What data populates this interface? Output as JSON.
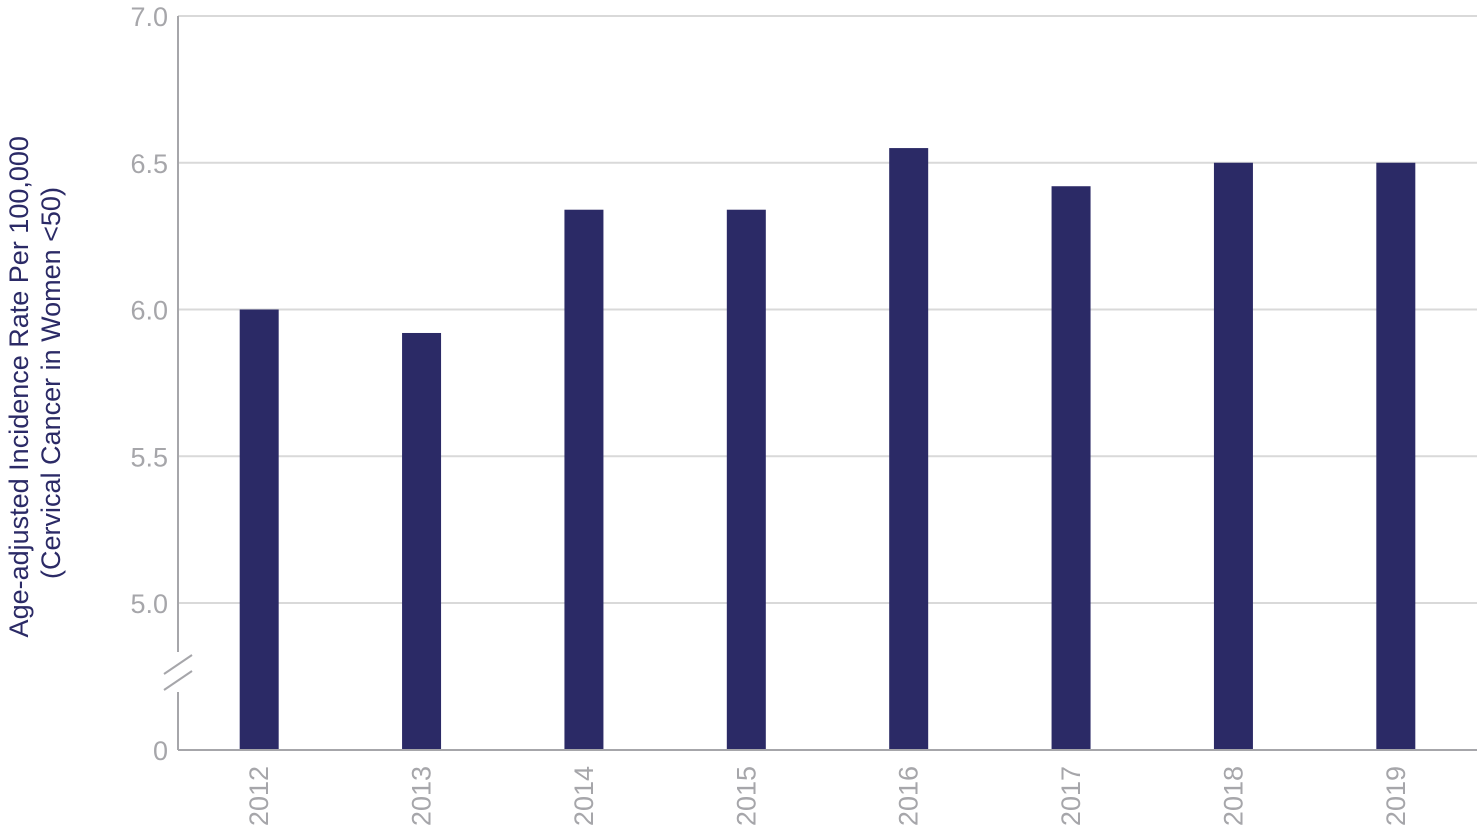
{
  "chart_data": {
    "type": "bar",
    "title": "",
    "ylabel": "Age-adjusted Incidence Rate Per 100,000 (Cervical Cancer in Women <50)",
    "ylabel_lines": [
      "Age-adjusted Incidence Rate Per 100,000",
      "(Cervical Cancer in Women <50)"
    ],
    "xlabel": "",
    "categories": [
      "2012",
      "2013",
      "2014",
      "2015",
      "2016",
      "2017",
      "2018",
      "2019"
    ],
    "values": [
      6.0,
      5.92,
      6.34,
      6.34,
      6.55,
      6.42,
      6.5,
      6.5
    ],
    "ylim": [
      0,
      7.0
    ],
    "axis_break": true,
    "y_ticks": [
      0,
      5.0,
      5.5,
      6.0,
      6.5,
      7.0
    ],
    "y_tick_labels": [
      "0",
      "5.0",
      "5.5",
      "6.0",
      "6.5",
      "7.0"
    ],
    "grid": true,
    "legend": "none",
    "bar_color": "#2b2a66",
    "grid_color": "#d9d9d9",
    "axis_color": "#a6a6aa"
  }
}
